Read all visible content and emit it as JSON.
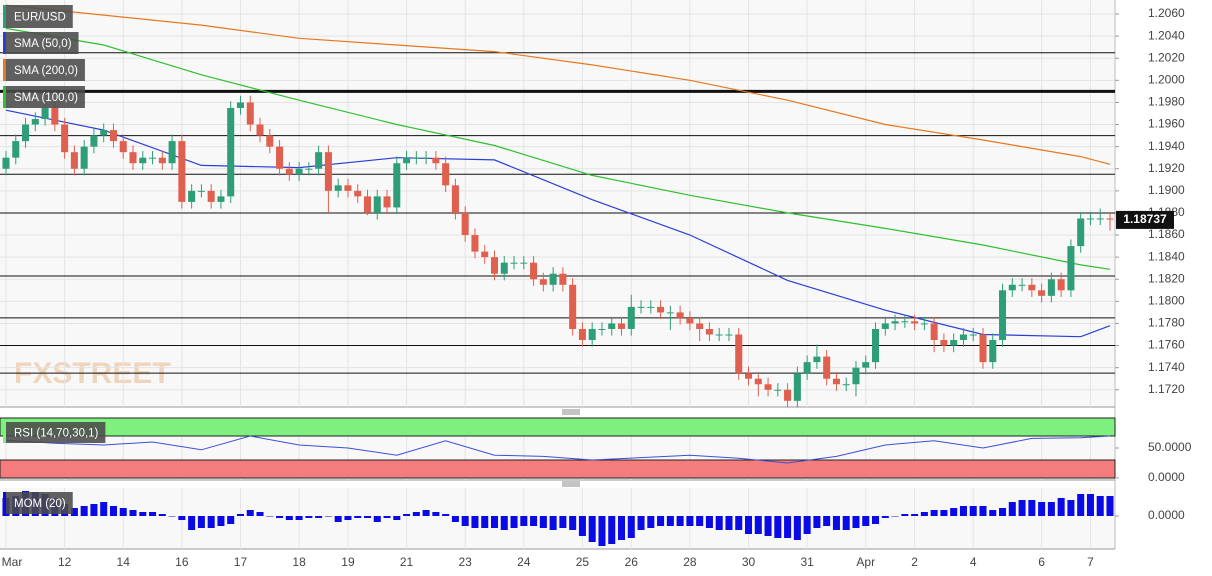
{
  "chart_data": {
    "type": "candlestick",
    "symbol": "EUR/USD",
    "symbol_color": "#26a17b",
    "watermark": "FXSTREET",
    "up_color": "#2e9e79",
    "down_color": "#e0604f",
    "grid": true,
    "categories": [
      "Mar",
      null,
      null,
      null,
      null,
      null,
      "12",
      null,
      null,
      null,
      null,
      null,
      "14",
      null,
      null,
      null,
      null,
      null,
      "16",
      null,
      null,
      null,
      null,
      null,
      "17",
      null,
      null,
      null,
      null,
      null,
      "18",
      null,
      null,
      null,
      null,
      "19",
      null,
      null,
      null,
      null,
      null,
      "21",
      null,
      null,
      null,
      null,
      null,
      "23",
      null,
      null,
      null,
      null,
      null,
      "24",
      null,
      null,
      null,
      null,
      null,
      "25",
      null,
      null,
      null,
      null,
      "26",
      null,
      null,
      null,
      null,
      null,
      "28",
      null,
      null,
      null,
      null,
      null,
      "30",
      null,
      null,
      null,
      null,
      null,
      "31",
      null,
      null,
      null,
      null,
      null,
      "Apr",
      null,
      null,
      null,
      null,
      "2",
      null,
      null,
      null,
      null,
      null,
      "4",
      null,
      null,
      null,
      null,
      null,
      null,
      "6",
      null,
      null,
      null,
      null,
      "7",
      null,
      null
    ],
    "candles": [
      [
        1.192,
        1.1936,
        1.1914,
        1.193
      ],
      [
        1.193,
        1.1951,
        1.1924,
        1.1945
      ],
      [
        1.1945,
        1.1966,
        1.1939,
        1.196
      ],
      [
        1.196,
        1.1971,
        1.1954,
        1.1965
      ],
      [
        1.1965,
        1.1981,
        1.1959,
        1.1975
      ],
      [
        1.1975,
        1.1981,
        1.1954,
        1.196
      ],
      [
        1.196,
        1.1966,
        1.1929,
        1.1935
      ],
      [
        1.1935,
        1.1941,
        1.1914,
        1.192
      ],
      [
        1.192,
        1.1946,
        1.1914,
        1.194
      ],
      [
        1.194,
        1.1956,
        1.1934,
        1.195
      ],
      [
        1.195,
        1.1961,
        1.1944,
        1.1955
      ],
      [
        1.1955,
        1.1961,
        1.1939,
        1.1945
      ],
      [
        1.1945,
        1.1951,
        1.1929,
        1.1935
      ],
      [
        1.1935,
        1.1941,
        1.1919,
        1.1925
      ],
      [
        1.1925,
        1.1936,
        1.1919,
        1.193
      ],
      [
        1.193,
        1.1936,
        1.1924,
        1.193
      ],
      [
        1.193,
        1.1936,
        1.1919,
        1.1925
      ],
      [
        1.1925,
        1.1951,
        1.1919,
        1.1945
      ],
      [
        1.1945,
        1.1951,
        1.1884,
        1.189
      ],
      [
        1.189,
        1.1906,
        1.1884,
        1.19
      ],
      [
        1.19,
        1.1906,
        1.1894,
        1.19
      ],
      [
        1.19,
        1.1906,
        1.1884,
        1.189
      ],
      [
        1.189,
        1.1901,
        1.1884,
        1.1895
      ],
      [
        1.1895,
        1.1981,
        1.1889,
        1.1975
      ],
      [
        1.1975,
        1.1986,
        1.1969,
        1.198
      ],
      [
        1.198,
        1.1986,
        1.1954,
        1.196
      ],
      [
        1.196,
        1.1966,
        1.1944,
        1.195
      ],
      [
        1.195,
        1.1956,
        1.1934,
        1.194
      ],
      [
        1.194,
        1.1946,
        1.1914,
        1.192
      ],
      [
        1.192,
        1.1926,
        1.1909,
        1.1915
      ],
      [
        1.1915,
        1.1926,
        1.1909,
        1.192
      ],
      [
        1.192,
        1.1926,
        1.1914,
        1.192
      ],
      [
        1.192,
        1.1941,
        1.1914,
        1.1935
      ],
      [
        1.1935,
        1.1941,
        1.188,
        1.19
      ],
      [
        1.19,
        1.1911,
        1.1894,
        1.1905
      ],
      [
        1.1905,
        1.1911,
        1.1894,
        1.19
      ],
      [
        1.19,
        1.1906,
        1.1889,
        1.1895
      ],
      [
        1.1895,
        1.1901,
        1.1878,
        1.188
      ],
      [
        1.188,
        1.1901,
        1.1874,
        1.1895
      ],
      [
        1.1895,
        1.1901,
        1.1879,
        1.1885
      ],
      [
        1.1885,
        1.1931,
        1.1879,
        1.1925
      ],
      [
        1.1925,
        1.1936,
        1.1919,
        1.193
      ],
      [
        1.193,
        1.1936,
        1.1924,
        1.193
      ],
      [
        1.193,
        1.1936,
        1.1924,
        1.193
      ],
      [
        1.193,
        1.1936,
        1.1919,
        1.1925
      ],
      [
        1.1925,
        1.1931,
        1.1899,
        1.1905
      ],
      [
        1.1905,
        1.1911,
        1.1874,
        1.188
      ],
      [
        1.188,
        1.1886,
        1.1854,
        1.186
      ],
      [
        1.186,
        1.1866,
        1.1839,
        1.1845
      ],
      [
        1.1845,
        1.1851,
        1.1834,
        1.184
      ],
      [
        1.184,
        1.1846,
        1.1819,
        1.1825
      ],
      [
        1.1825,
        1.1841,
        1.1819,
        1.1835
      ],
      [
        1.1835,
        1.1841,
        1.1829,
        1.1835
      ],
      [
        1.1835,
        1.1841,
        1.1829,
        1.1835
      ],
      [
        1.1835,
        1.1841,
        1.1814,
        1.182
      ],
      [
        1.182,
        1.1826,
        1.1809,
        1.1815
      ],
      [
        1.1815,
        1.1831,
        1.1809,
        1.1825
      ],
      [
        1.1825,
        1.1831,
        1.1809,
        1.1815
      ],
      [
        1.1815,
        1.1821,
        1.1769,
        1.1775
      ],
      [
        1.1775,
        1.1781,
        1.1759,
        1.1765
      ],
      [
        1.1765,
        1.1781,
        1.1759,
        1.1775
      ],
      [
        1.1775,
        1.1781,
        1.1769,
        1.1775
      ],
      [
        1.1775,
        1.1786,
        1.1769,
        1.178
      ],
      [
        1.178,
        1.1786,
        1.1769,
        1.1775
      ],
      [
        1.1775,
        1.1806,
        1.1769,
        1.1795
      ],
      [
        1.1795,
        1.1801,
        1.1789,
        1.1795
      ],
      [
        1.1795,
        1.1801,
        1.1789,
        1.1795
      ],
      [
        1.1795,
        1.1801,
        1.1784,
        1.179
      ],
      [
        1.179,
        1.1796,
        1.1774,
        1.179
      ],
      [
        1.179,
        1.1796,
        1.1779,
        1.1785
      ],
      [
        1.1785,
        1.1791,
        1.1774,
        1.178
      ],
      [
        1.178,
        1.1786,
        1.1764,
        1.1775
      ],
      [
        1.1775,
        1.1781,
        1.1764,
        1.177
      ],
      [
        1.177,
        1.1776,
        1.1764,
        1.177
      ],
      [
        1.177,
        1.1776,
        1.1764,
        1.177
      ],
      [
        1.177,
        1.1776,
        1.1729,
        1.1735
      ],
      [
        1.1735,
        1.1741,
        1.1724,
        1.173
      ],
      [
        1.173,
        1.1736,
        1.1714,
        1.1725
      ],
      [
        1.1725,
        1.1731,
        1.1714,
        1.172
      ],
      [
        1.172,
        1.1726,
        1.1714,
        1.172
      ],
      [
        1.172,
        1.1726,
        1.1704,
        1.171
      ],
      [
        1.171,
        1.1741,
        1.1704,
        1.1735
      ],
      [
        1.1735,
        1.1751,
        1.1729,
        1.1745
      ],
      [
        1.1745,
        1.1761,
        1.1739,
        1.175
      ],
      [
        1.175,
        1.1756,
        1.1724,
        1.173
      ],
      [
        1.173,
        1.1736,
        1.1719,
        1.1725
      ],
      [
        1.1725,
        1.1731,
        1.1719,
        1.1725
      ],
      [
        1.1725,
        1.1746,
        1.1714,
        1.174
      ],
      [
        1.174,
        1.1751,
        1.1734,
        1.1745
      ],
      [
        1.1745,
        1.1781,
        1.1739,
        1.1775
      ],
      [
        1.1775,
        1.1786,
        1.1769,
        1.178
      ],
      [
        1.178,
        1.1788,
        1.1774,
        1.1782
      ],
      [
        1.1782,
        1.1788,
        1.1776,
        1.1782
      ],
      [
        1.1782,
        1.1788,
        1.1774,
        1.178
      ],
      [
        1.178,
        1.1786,
        1.1774,
        1.178
      ],
      [
        1.178,
        1.1786,
        1.1754,
        1.1765
      ],
      [
        1.1765,
        1.1771,
        1.1754,
        1.176
      ],
      [
        1.176,
        1.1771,
        1.1754,
        1.1765
      ],
      [
        1.1765,
        1.1776,
        1.1759,
        1.177
      ],
      [
        1.177,
        1.1776,
        1.1764,
        1.177
      ],
      [
        1.177,
        1.1776,
        1.1739,
        1.1745
      ],
      [
        1.1745,
        1.1771,
        1.1739,
        1.1765
      ],
      [
        1.1765,
        1.1816,
        1.1759,
        1.181
      ],
      [
        1.181,
        1.1821,
        1.1804,
        1.1815
      ],
      [
        1.1815,
        1.1821,
        1.1809,
        1.1815
      ],
      [
        1.1815,
        1.1821,
        1.1804,
        1.181
      ],
      [
        1.181,
        1.1816,
        1.1799,
        1.1805
      ],
      [
        1.1805,
        1.1826,
        1.1799,
        1.182
      ],
      [
        1.182,
        1.1826,
        1.1804,
        1.181
      ],
      [
        1.181,
        1.1856,
        1.1804,
        1.185
      ],
      [
        1.185,
        1.1881,
        1.1844,
        1.1875
      ],
      [
        1.1875,
        1.1881,
        1.1869,
        1.1875
      ],
      [
        1.1875,
        1.1884,
        1.1869,
        1.1875
      ],
      [
        1.1875,
        1.1881,
        1.1864,
        1.1874
      ]
    ],
    "ylim": [
      1.17044,
      1.20727
    ],
    "yticks": [
      {
        "value": 1.206,
        "label": "1.2060"
      },
      {
        "value": 1.204,
        "label": "1.2040"
      },
      {
        "value": 1.202,
        "label": "1.2020"
      },
      {
        "value": 1.2,
        "label": "1.2000"
      },
      {
        "value": 1.198,
        "label": "1.1980"
      },
      {
        "value": 1.196,
        "label": "1.1960"
      },
      {
        "value": 1.194,
        "label": "1.1940"
      },
      {
        "value": 1.192,
        "label": "1.1920"
      },
      {
        "value": 1.19,
        "label": "1.1900"
      },
      {
        "value": 1.188,
        "label": "1.1880"
      },
      {
        "value": 1.186,
        "label": "1.1860"
      },
      {
        "value": 1.184,
        "label": "1.1840"
      },
      {
        "value": 1.182,
        "label": "1.1820"
      },
      {
        "value": 1.18,
        "label": "1.1800"
      },
      {
        "value": 1.178,
        "label": "1.1780"
      },
      {
        "value": 1.176,
        "label": "1.1760"
      },
      {
        "value": 1.174,
        "label": "1.1740"
      },
      {
        "value": 1.172,
        "label": "1.1720"
      }
    ],
    "last_price": 1.18737,
    "levels": [
      1.2025,
      1.199,
      1.195,
      1.1915,
      1.188,
      1.1823,
      1.1785,
      1.176,
      1.1735
    ],
    "level_widths": [
      1,
      3,
      1,
      1,
      1,
      1,
      1,
      1,
      1
    ],
    "overlays": [
      {
        "name": "SMA (50,0)",
        "color": "#2a3fd6",
        "x": [
          0,
          10,
          20,
          30,
          40,
          50,
          60,
          70,
          80,
          90,
          100,
          110,
          113
        ],
        "values": [
          1.1973,
          1.1955,
          1.1923,
          1.1921,
          1.193,
          1.1928,
          1.1892,
          1.186,
          1.1819,
          1.1792,
          1.177,
          1.1768,
          1.1778
        ]
      },
      {
        "name": "SMA (200,0)",
        "color": "#e8771f",
        "x": [
          0,
          10,
          20,
          30,
          40,
          50,
          60,
          70,
          80,
          90,
          100,
          110,
          113
        ],
        "values": [
          1.2068,
          1.2059,
          1.205,
          1.2038,
          1.2032,
          1.2026,
          1.2014,
          1.2,
          1.1982,
          1.196,
          1.1946,
          1.1931,
          1.1924
        ]
      },
      {
        "name": "SMA (100,0)",
        "color": "#2ec02e",
        "x": [
          0,
          10,
          20,
          30,
          40,
          50,
          60,
          70,
          80,
          90,
          100,
          110,
          113
        ],
        "values": [
          1.2047,
          1.2032,
          1.2005,
          1.1982,
          1.196,
          1.1941,
          1.1914,
          1.1896,
          1.188,
          1.1866,
          1.1851,
          1.1833,
          1.1829
        ]
      }
    ],
    "rsi": {
      "name": "RSI (14,70,30,1)",
      "color": "#3a4fd8",
      "ylim": [
        0,
        100
      ],
      "yticks": [
        {
          "value": 50,
          "label": "50.0000"
        },
        {
          "value": 0,
          "label": "0.0000"
        }
      ],
      "bands": [
        30,
        70
      ],
      "x": [
        0,
        5,
        10,
        15,
        20,
        25,
        30,
        35,
        40,
        45,
        50,
        55,
        60,
        65,
        70,
        75,
        80,
        85,
        90,
        95,
        100,
        105,
        110,
        113
      ],
      "values": [
        63,
        58,
        55,
        60,
        47,
        70,
        55,
        50,
        38,
        62,
        38,
        36,
        30,
        34,
        38,
        33,
        25,
        36,
        55,
        62,
        50,
        66,
        67,
        70
      ]
    },
    "mom": {
      "name": "MOM (20)",
      "color": "#0a0ae6",
      "ylim": [
        -0.0032,
        0.0028
      ],
      "yticks": [
        {
          "value": 0,
          "label": "0.0000"
        }
      ],
      "values": [
        0.0018,
        0.002,
        0.0025,
        0.0024,
        0.0022,
        0.0018,
        0.0012,
        0.0008,
        0.001,
        0.0012,
        0.0014,
        0.001,
        0.0008,
        0.0006,
        0.0004,
        0.0004,
        0.0002,
        0,
        -0.0004,
        -0.0014,
        -0.0012,
        -0.0012,
        -0.001,
        -0.0008,
        0.0002,
        0.0006,
        0.0004,
        0,
        -0.0002,
        -0.0004,
        -0.0004,
        -0.0002,
        -0.0002,
        0,
        -0.0006,
        -0.0004,
        -0.0002,
        -0.0002,
        -0.0006,
        -0.0002,
        -0.0004,
        0.0002,
        0.0004,
        0.0006,
        0.0004,
        0.0002,
        -0.0006,
        -0.001,
        -0.0012,
        -0.0012,
        -0.0012,
        -0.0014,
        -0.0012,
        -0.001,
        -0.001,
        -0.0012,
        -0.0014,
        -0.0012,
        -0.0014,
        -0.002,
        -0.0026,
        -0.003,
        -0.0028,
        -0.0024,
        -0.0022,
        -0.0014,
        -0.0012,
        -0.001,
        -0.001,
        -0.001,
        -0.001,
        -0.001,
        -0.0012,
        -0.0014,
        -0.0014,
        -0.0014,
        -0.0018,
        -0.0018,
        -0.002,
        -0.0022,
        -0.0022,
        -0.0024,
        -0.0018,
        -0.0012,
        -0.001,
        -0.0014,
        -0.0014,
        -0.0012,
        -0.001,
        -0.0008,
        -0.0002,
        0,
        0.0002,
        0.0002,
        0.0004,
        0.0006,
        0.0006,
        0.0008,
        0.001,
        0.001,
        0.001,
        0.0006,
        0.0008,
        0.0014,
        0.0016,
        0.0016,
        0.0014,
        0.0014,
        0.0018,
        0.0016,
        0.0022,
        0.0022,
        0.002,
        0.002
      ]
    }
  }
}
